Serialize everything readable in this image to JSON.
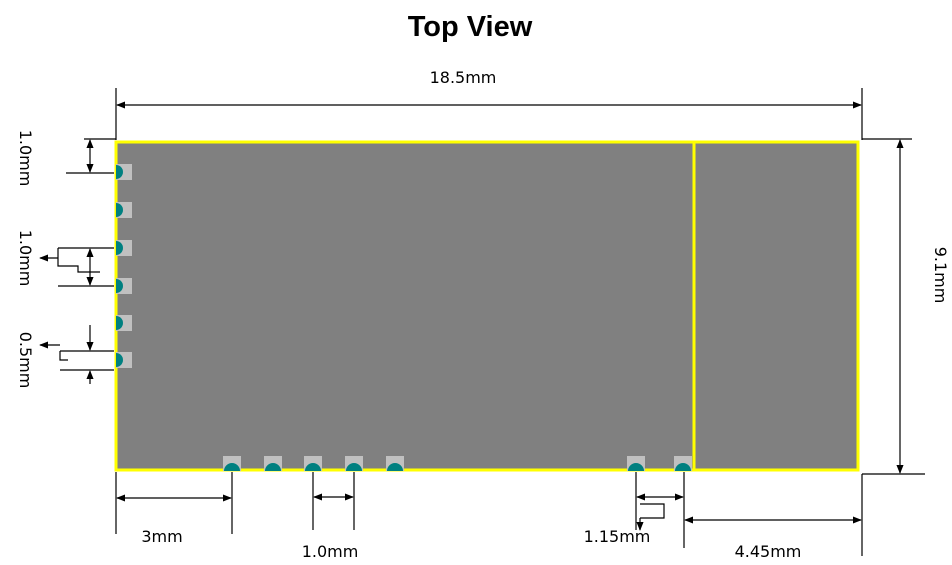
{
  "title": "Top View",
  "dimensions": {
    "width": "18.5mm",
    "height": "9.1mm",
    "top_offset": "1.0mm",
    "pad_pitch_left": "1.0mm",
    "pad_width_left": "0.5mm",
    "bottom_first_pad": "3mm",
    "bottom_pitch": "1.0mm",
    "bottom_pad_gap": "1.15mm",
    "right_section": "4.45mm"
  },
  "colors": {
    "board_fill": "#808080",
    "board_outline": "#ffff00",
    "pad_fill": "#c0c0c0",
    "pad_marker": "#008080"
  },
  "pads": {
    "left_count": 6,
    "bottom_count": 7
  }
}
